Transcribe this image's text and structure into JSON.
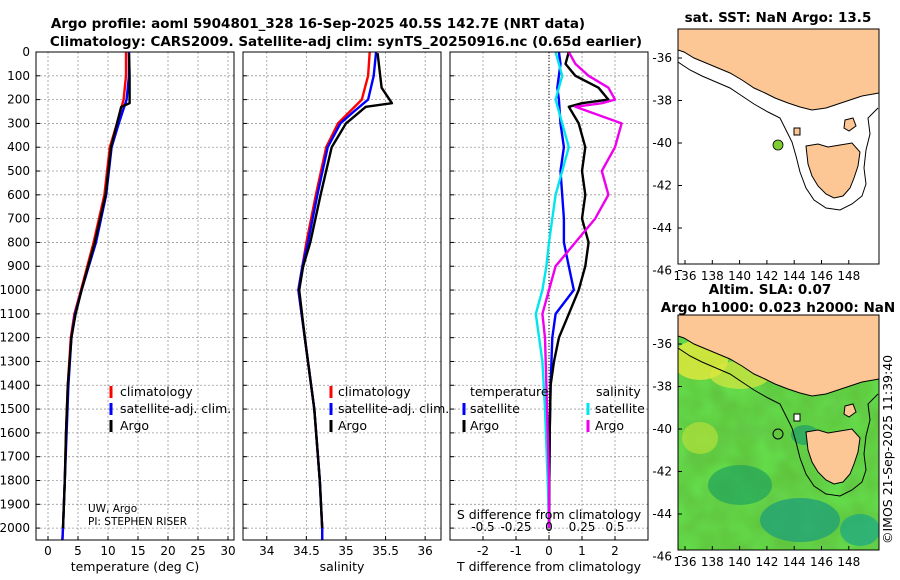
{
  "title_line1": "Argo profile: aoml 5904801_328 16-Sep-2025 40.5S 142.7E (NRT data)",
  "title_line2": "Climatology: CARS2009. Satellite-adj clim: synTS_20250916.nc (0.65d earlier)",
  "credit_line1": "UW, Argo",
  "credit_line2": "PI: STEPHEN RISER",
  "timestamp": "©IMOS 21-Sep-2025 11:39:40",
  "colors": {
    "climatology": "#ff0000",
    "satellite": "#0000ff",
    "argo": "#000000",
    "s_satellite": "#00e5ee",
    "s_argo": "#ee00ee",
    "land": "#fcc795",
    "float": "#7fcc33"
  },
  "chart_data": [
    {
      "type": "line",
      "id": "temperature",
      "xlabel": "temperature (deg C)",
      "xlim": [
        -2,
        31
      ],
      "xticks": [
        0,
        5,
        10,
        15,
        20,
        25,
        30
      ],
      "ylim": [
        0,
        2050
      ],
      "yticks": [
        0,
        100,
        200,
        300,
        400,
        500,
        600,
        700,
        800,
        900,
        1000,
        1100,
        1200,
        1300,
        1400,
        1500,
        1600,
        1700,
        1800,
        1900,
        2000
      ],
      "legend": [
        "climatology",
        "satellite-adj. clim.",
        "Argo"
      ],
      "series": [
        {
          "name": "climatology",
          "depth": [
            0,
            100,
            200,
            300,
            400,
            600,
            800,
            1000,
            1100,
            1200,
            1400,
            1600,
            1800,
            2000,
            2050
          ],
          "values": [
            13.0,
            13.0,
            12.6,
            11.5,
            10.3,
            9.4,
            7.6,
            5.5,
            4.4,
            3.8,
            3.3,
            3.0,
            2.8,
            2.5,
            2.4
          ]
        },
        {
          "name": "satellite-adj. clim.",
          "depth": [
            0,
            100,
            200,
            300,
            400,
            600,
            800,
            1000,
            1100,
            1200,
            1400,
            1600,
            1800,
            2000,
            2050
          ],
          "values": [
            13.5,
            13.5,
            13.1,
            11.8,
            10.6,
            9.7,
            8.0,
            5.6,
            4.5,
            3.9,
            3.4,
            3.1,
            2.8,
            2.5,
            2.4
          ]
        },
        {
          "name": "Argo",
          "depth": [
            5,
            100,
            200,
            215,
            230,
            300,
            400,
            600,
            800,
            1000,
            1100,
            1200,
            1400,
            1600,
            1800,
            2000
          ],
          "values": [
            13.5,
            13.6,
            13.6,
            13.6,
            12.2,
            11.5,
            10.5,
            9.6,
            7.8,
            5.6,
            4.6,
            3.9,
            3.3,
            3.0,
            2.8,
            2.5
          ]
        }
      ]
    },
    {
      "type": "line",
      "id": "salinity",
      "xlabel": "salinity",
      "xlim": [
        33.7,
        36.2
      ],
      "xticks": [
        34,
        34.5,
        35,
        35.5,
        36
      ],
      "ylim": [
        0,
        2050
      ],
      "legend": [
        "climatology",
        "satellite-adj. clim.",
        "Argo"
      ],
      "series": [
        {
          "name": "climatology",
          "depth": [
            0,
            100,
            200,
            250,
            300,
            400,
            600,
            800,
            900,
            1000,
            1200,
            1500,
            1800,
            2000,
            2050
          ],
          "values": [
            35.3,
            35.28,
            35.2,
            35.05,
            34.9,
            34.75,
            34.62,
            34.5,
            34.45,
            34.4,
            34.48,
            34.6,
            34.67,
            34.7,
            34.7
          ]
        },
        {
          "name": "satellite-adj. clim.",
          "depth": [
            0,
            100,
            200,
            250,
            300,
            400,
            600,
            800,
            900,
            1000,
            1200,
            1500,
            1800,
            2000,
            2050
          ],
          "values": [
            35.38,
            35.35,
            35.28,
            35.1,
            34.93,
            34.77,
            34.64,
            34.52,
            34.45,
            34.4,
            34.48,
            34.6,
            34.67,
            34.7,
            34.7
          ]
        },
        {
          "name": "Argo",
          "depth": [
            5,
            150,
            200,
            215,
            230,
            300,
            400,
            600,
            800,
            900,
            1000,
            1200,
            1500,
            1800,
            2000
          ],
          "values": [
            35.4,
            35.45,
            35.55,
            35.58,
            35.25,
            35.0,
            34.82,
            34.68,
            34.55,
            34.46,
            34.41,
            34.48,
            34.6,
            34.67,
            34.7
          ]
        }
      ]
    },
    {
      "type": "line",
      "id": "difference",
      "xlabel": "T difference from climatology",
      "xlabel_top": "S difference from climatology",
      "xlim": [
        -3,
        3
      ],
      "xticks": [
        -2,
        -1,
        0,
        1,
        2
      ],
      "xticks_s": [
        "-0.5",
        "-0.25",
        "0",
        "0.25",
        "0.5"
      ],
      "ylim": [
        0,
        2050
      ],
      "legend_left_title": "temperature",
      "legend_right_title": "salinity",
      "legend_left": [
        "satellite",
        "Argo"
      ],
      "legend_right": [
        "satellite",
        "Argo"
      ],
      "series": [
        {
          "name": "temperature satellite",
          "depth": [
            0,
            50,
            100,
            150,
            200,
            300,
            400,
            500,
            600,
            700,
            800,
            900,
            1000,
            1100,
            1200,
            1400,
            1600,
            1800,
            2000
          ],
          "values": [
            0.3,
            0.35,
            0.3,
            0.25,
            0.3,
            0.35,
            0.45,
            0.35,
            0.4,
            0.45,
            0.45,
            0.6,
            0.75,
            0.2,
            0.1,
            0.05,
            0.02,
            0.01,
            0.0
          ]
        },
        {
          "name": "temperature Argo",
          "depth": [
            0,
            50,
            100,
            150,
            200,
            215,
            230,
            300,
            400,
            500,
            600,
            700,
            800,
            900,
            1000,
            1100,
            1200,
            1300,
            1400,
            1600,
            1800,
            2000
          ],
          "values": [
            0.6,
            0.5,
            0.8,
            1.5,
            1.8,
            1.0,
            0.6,
            0.9,
            1.1,
            1.0,
            1.1,
            1.0,
            1.2,
            1.1,
            0.9,
            0.6,
            0.3,
            0.15,
            0.05,
            0.02,
            0.01,
            0.0
          ]
        },
        {
          "name": "salinity satellite",
          "depth": [
            0,
            100,
            200,
            300,
            400,
            600,
            800,
            900,
            1000,
            1100,
            1300,
            1500,
            1800,
            2000
          ],
          "values": [
            0.05,
            0.1,
            0.05,
            0.1,
            0.15,
            0.05,
            0.0,
            -0.02,
            -0.05,
            -0.1,
            -0.05,
            -0.03,
            -0.01,
            0.0
          ]
        },
        {
          "name": "salinity Argo",
          "depth": [
            0,
            50,
            100,
            150,
            200,
            215,
            230,
            300,
            400,
            500,
            600,
            700,
            800,
            900,
            1000,
            1100,
            1200,
            1400,
            1600,
            1800,
            2000
          ],
          "values": [
            0.15,
            0.2,
            0.3,
            0.45,
            0.5,
            0.4,
            0.2,
            0.55,
            0.5,
            0.4,
            0.45,
            0.35,
            0.2,
            0.05,
            0.0,
            -0.05,
            -0.03,
            -0.02,
            -0.01,
            0.0,
            0.0
          ]
        }
      ]
    }
  ],
  "map_top": {
    "title": "sat. SST: NaN Argo: 13.5",
    "yticks": [
      "-36",
      "-38",
      "-40",
      "-42",
      "-44",
      "-46"
    ],
    "xticks": [
      "136",
      "138",
      "140",
      "142",
      "144",
      "146",
      "148"
    ]
  },
  "map_bottom": {
    "title_line1": "Altim. SLA: 0.07",
    "title_line2": "Argo h1000: 0.023 h2000: NaN",
    "yticks": [
      "-36",
      "-38",
      "-40",
      "-42",
      "-44",
      "-46"
    ],
    "xticks": [
      "136",
      "138",
      "140",
      "142",
      "144",
      "146",
      "148"
    ]
  }
}
